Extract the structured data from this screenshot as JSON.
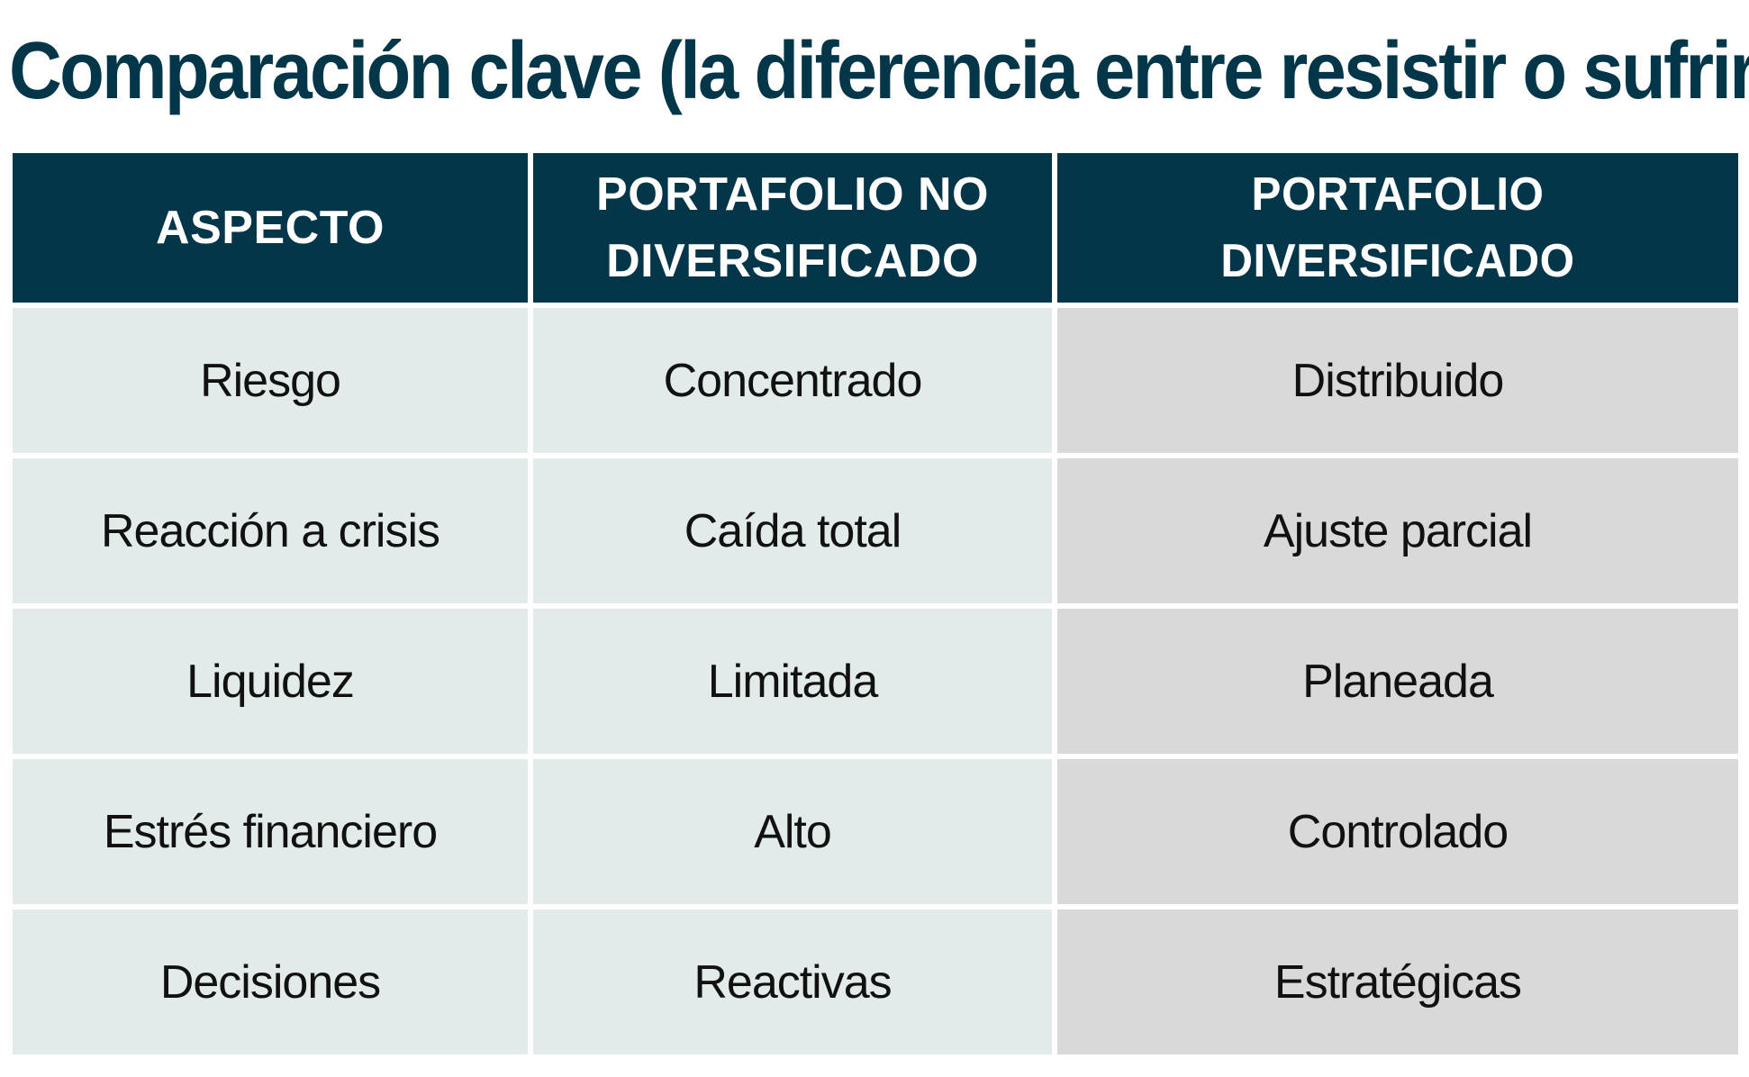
{
  "title": "Comparación clave (la diferencia entre resistir o sufrir)",
  "table": {
    "headers": [
      "ASPECTO",
      "PORTAFOLIO NO DIVERSIFICADO",
      "PORTAFOLIO DIVERSIFICADO"
    ],
    "rows": [
      [
        "Riesgo",
        "Concentrado",
        "Distribuido"
      ],
      [
        "Reacción a crisis",
        "Caída total",
        "Ajuste parcial"
      ],
      [
        "Liquidez",
        "Limitada",
        "Planeada"
      ],
      [
        "Estrés financiero",
        "Alto",
        "Controlado"
      ],
      [
        "Decisiones",
        "Reactivas",
        "Estratégicas"
      ]
    ]
  },
  "colors": {
    "header_bg": "#033649",
    "header_text": "#ffffff",
    "title_text": "#033649",
    "cell_light": "#e2eaea",
    "cell_gray": "#d9d9d9"
  }
}
